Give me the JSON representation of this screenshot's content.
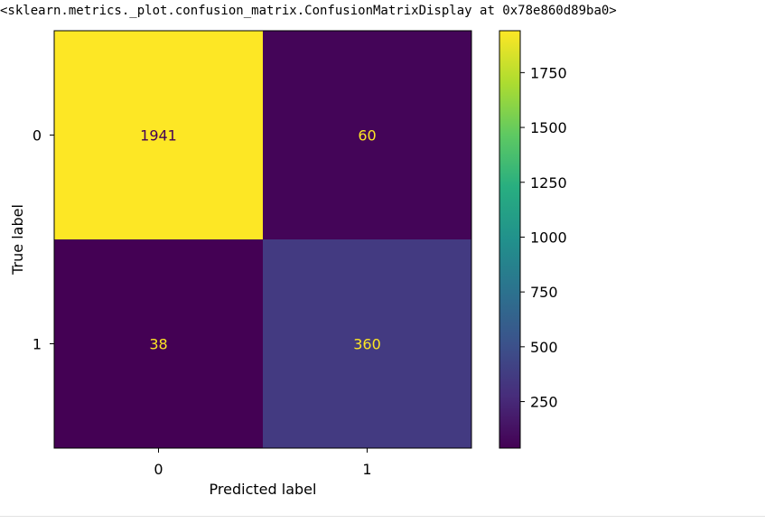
{
  "output": {
    "repr_text": "<sklearn.metrics._plot.confusion_matrix.ConfusionMatrixDisplay at 0x78e860d89ba0>"
  },
  "colors": {
    "text_on_dark": "#fde725",
    "text_on_light": "#440154",
    "axis": "#000000"
  },
  "chart_data": {
    "type": "heatmap",
    "title": "",
    "xlabel": "Predicted label",
    "ylabel": "True label",
    "x_categories": [
      "0",
      "1"
    ],
    "y_categories": [
      "0",
      "1"
    ],
    "matrix": [
      [
        1941,
        60
      ],
      [
        38,
        360
      ]
    ],
    "colormap": "viridis",
    "color_range": [
      38,
      1941
    ],
    "colorbar": {
      "ticks": [
        250,
        500,
        750,
        1000,
        1250,
        1500,
        1750
      ],
      "tick_labels": [
        "250",
        "500",
        "750",
        "1000",
        "1250",
        "1500",
        "1750"
      ]
    }
  }
}
